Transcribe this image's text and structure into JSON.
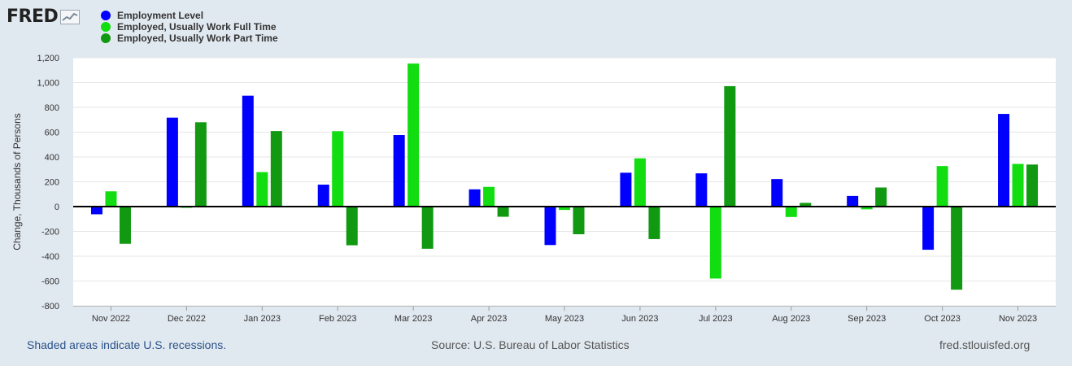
{
  "brand": {
    "name": "FRED"
  },
  "legend": [
    {
      "label": "Employment Level",
      "color": "#0000ff"
    },
    {
      "label": "Employed, Usually Work Full Time",
      "color": "#11dd11"
    },
    {
      "label": "Employed, Usually Work Part Time",
      "color": "#119911"
    }
  ],
  "chart_data": {
    "type": "bar",
    "title": "",
    "xlabel": "",
    "ylabel": "Change, Thousands of Persons",
    "ylim": [
      -800,
      1200
    ],
    "yticks": [
      -800,
      -600,
      -400,
      -200,
      0,
      200,
      400,
      600,
      800,
      1000,
      1200
    ],
    "ytick_labels": [
      "-800",
      "-600",
      "-400",
      "-200",
      "0",
      "200",
      "400",
      "600",
      "800",
      "1,000",
      "1,200"
    ],
    "grid": true,
    "categories": [
      "Nov 2022",
      "Dec 2022",
      "Jan 2023",
      "Feb 2023",
      "Mar 2023",
      "Apr 2023",
      "May 2023",
      "Jun 2023",
      "Jul 2023",
      "Aug 2023",
      "Sep 2023",
      "Oct 2023",
      "Nov 2023"
    ],
    "series": [
      {
        "name": "Employment Level",
        "color": "#0000ff",
        "values": [
          -62,
          717,
          894,
          177,
          577,
          139,
          -310,
          273,
          268,
          222,
          86,
          -348,
          747
        ]
      },
      {
        "name": "Employed, Usually Work Full Time",
        "color": "#11dd11",
        "values": [
          123,
          -10,
          278,
          608,
          1153,
          159,
          -27,
          389,
          -580,
          -84,
          -22,
          327,
          344
        ]
      },
      {
        "name": "Employed, Usually Work Part Time",
        "color": "#119911",
        "values": [
          -300,
          680,
          609,
          -312,
          -340,
          -82,
          -223,
          -262,
          971,
          30,
          154,
          -670,
          339
        ]
      }
    ]
  },
  "footer": {
    "recessions": "Shaded areas indicate U.S. recessions.",
    "source": "Source: U.S. Bureau of Labor Statistics",
    "site": "fred.stlouisfed.org"
  }
}
